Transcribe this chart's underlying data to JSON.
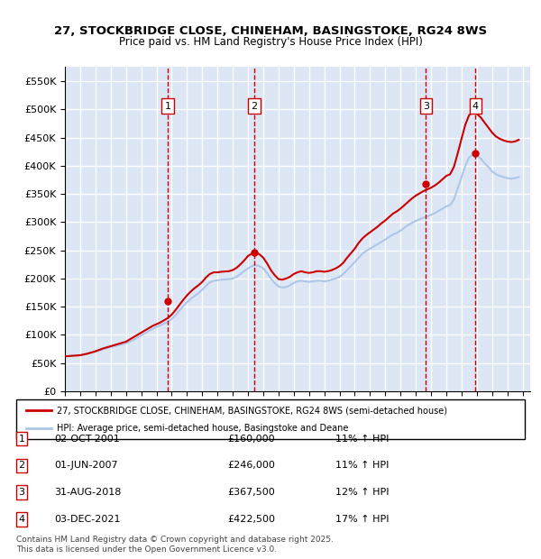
{
  "title_line1": "27, STOCKBRIDGE CLOSE, CHINEHAM, BASINGSTOKE, RG24 8WS",
  "title_line2": "Price paid vs. HM Land Registry's House Price Index (HPI)",
  "ylabel": "",
  "xlim_start": 1995.0,
  "xlim_end": 2025.5,
  "ylim_min": 0,
  "ylim_max": 575000,
  "yticks": [
    0,
    50000,
    100000,
    150000,
    200000,
    250000,
    300000,
    350000,
    400000,
    450000,
    500000,
    550000
  ],
  "ytick_labels": [
    "£0",
    "£50K",
    "£100K",
    "£150K",
    "£200K",
    "£250K",
    "£300K",
    "£350K",
    "£400K",
    "£450K",
    "£500K",
    "£550K"
  ],
  "xticks": [
    1995,
    1996,
    1997,
    1998,
    1999,
    2000,
    2001,
    2002,
    2003,
    2004,
    2005,
    2006,
    2007,
    2008,
    2009,
    2010,
    2011,
    2012,
    2013,
    2014,
    2015,
    2016,
    2017,
    2018,
    2019,
    2020,
    2021,
    2022,
    2023,
    2024,
    2025
  ],
  "background_color": "#ffffff",
  "plot_bg_color": "#dce6f5",
  "grid_color": "#ffffff",
  "red_line_color": "#cc0000",
  "blue_line_color": "#aec6e8",
  "sale_marker_color": "#cc0000",
  "dashed_line_color": "#cc0000",
  "transactions": [
    {
      "num": 1,
      "date_str": "02-OCT-2001",
      "year": 2001.75,
      "price": 160000,
      "pct": "11%",
      "label": "1"
    },
    {
      "num": 2,
      "date_str": "01-JUN-2007",
      "year": 2007.42,
      "price": 246000,
      "pct": "11%",
      "label": "2"
    },
    {
      "num": 3,
      "date_str": "31-AUG-2018",
      "year": 2018.67,
      "price": 367500,
      "pct": "12%",
      "label": "3"
    },
    {
      "num": 4,
      "date_str": "03-DEC-2021",
      "year": 2021.92,
      "price": 422500,
      "pct": "17%",
      "label": "4"
    }
  ],
  "legend_entry1": "27, STOCKBRIDGE CLOSE, CHINEHAM, BASINGSTOKE, RG24 8WS (semi-detached house)",
  "legend_entry2": "HPI: Average price, semi-detached house, Basingstoke and Deane",
  "footnote": "Contains HM Land Registry data © Crown copyright and database right 2025.\nThis data is licensed under the Open Government Licence v3.0.",
  "hpi_data": {
    "years": [
      1995.0,
      1995.25,
      1995.5,
      1995.75,
      1996.0,
      1996.25,
      1996.5,
      1996.75,
      1997.0,
      1997.25,
      1997.5,
      1997.75,
      1998.0,
      1998.25,
      1998.5,
      1998.75,
      1999.0,
      1999.25,
      1999.5,
      1999.75,
      2000.0,
      2000.25,
      2000.5,
      2000.75,
      2001.0,
      2001.25,
      2001.5,
      2001.75,
      2002.0,
      2002.25,
      2002.5,
      2002.75,
      2003.0,
      2003.25,
      2003.5,
      2003.75,
      2004.0,
      2004.25,
      2004.5,
      2004.75,
      2005.0,
      2005.25,
      2005.5,
      2005.75,
      2006.0,
      2006.25,
      2006.5,
      2006.75,
      2007.0,
      2007.25,
      2007.5,
      2007.75,
      2008.0,
      2008.25,
      2008.5,
      2008.75,
      2009.0,
      2009.25,
      2009.5,
      2009.75,
      2010.0,
      2010.25,
      2010.5,
      2010.75,
      2011.0,
      2011.25,
      2011.5,
      2011.75,
      2012.0,
      2012.25,
      2012.5,
      2012.75,
      2013.0,
      2013.25,
      2013.5,
      2013.75,
      2014.0,
      2014.25,
      2014.5,
      2014.75,
      2015.0,
      2015.25,
      2015.5,
      2015.75,
      2016.0,
      2016.25,
      2016.5,
      2016.75,
      2017.0,
      2017.25,
      2017.5,
      2017.75,
      2018.0,
      2018.25,
      2018.5,
      2018.75,
      2019.0,
      2019.25,
      2019.5,
      2019.75,
      2020.0,
      2020.25,
      2020.5,
      2020.75,
      2021.0,
      2021.25,
      2021.5,
      2021.75,
      2022.0,
      2022.25,
      2022.5,
      2022.75,
      2023.0,
      2023.25,
      2023.5,
      2023.75,
      2024.0,
      2024.25,
      2024.5,
      2024.75
    ],
    "hpi_values": [
      62000,
      62500,
      63000,
      63500,
      64000,
      65000,
      66500,
      68000,
      70000,
      72000,
      74500,
      76500,
      78500,
      80000,
      81500,
      83000,
      85000,
      88000,
      91000,
      95000,
      99000,
      103000,
      107000,
      111000,
      114000,
      117000,
      120000,
      123000,
      128000,
      135000,
      143000,
      151000,
      158000,
      164000,
      169000,
      174000,
      180000,
      187000,
      193000,
      196000,
      197000,
      198000,
      198500,
      199000,
      200000,
      203000,
      208000,
      213000,
      218000,
      222000,
      224000,
      222000,
      218000,
      210000,
      200000,
      192000,
      186000,
      184000,
      185000,
      188000,
      192000,
      195000,
      196000,
      195000,
      194000,
      195000,
      196000,
      196000,
      195000,
      196000,
      198000,
      200000,
      203000,
      208000,
      215000,
      222000,
      229000,
      237000,
      244000,
      249000,
      253000,
      257000,
      261000,
      265000,
      269000,
      274000,
      278000,
      281000,
      285000,
      290000,
      295000,
      299000,
      302000,
      305000,
      308000,
      310000,
      313000,
      316000,
      320000,
      324000,
      328000,
      330000,
      340000,
      360000,
      380000,
      400000,
      415000,
      420000,
      418000,
      413000,
      405000,
      398000,
      390000,
      385000,
      382000,
      380000,
      378000,
      377000,
      378000,
      380000
    ],
    "price_values": [
      62000,
      62500,
      63000,
      63500,
      64000,
      65500,
      67000,
      69000,
      71000,
      73500,
      76000,
      78000,
      80000,
      82000,
      84000,
      86000,
      88000,
      92000,
      96000,
      100000,
      104000,
      108000,
      112000,
      116000,
      119000,
      122000,
      126000,
      130000,
      136000,
      144000,
      153000,
      162000,
      170000,
      177000,
      183000,
      188000,
      194000,
      202000,
      208000,
      211000,
      211000,
      212000,
      212500,
      213000,
      215000,
      219000,
      225000,
      232000,
      240000,
      244000,
      246000,
      243000,
      237000,
      227000,
      215000,
      206000,
      199000,
      198000,
      200000,
      203000,
      208000,
      211000,
      213000,
      211000,
      210000,
      211000,
      213000,
      213000,
      212000,
      213000,
      215000,
      218000,
      222000,
      228000,
      237000,
      245000,
      253000,
      263000,
      271000,
      277000,
      282000,
      287000,
      292000,
      298000,
      303000,
      309000,
      315000,
      319000,
      324000,
      330000,
      336000,
      342000,
      347000,
      351000,
      355000,
      358000,
      361000,
      365000,
      370000,
      376000,
      382000,
      385000,
      398000,
      422000,
      448000,
      473000,
      490000,
      495000,
      492000,
      486000,
      477000,
      468000,
      459000,
      452000,
      448000,
      445000,
      443000,
      442000,
      443000,
      446000
    ]
  }
}
